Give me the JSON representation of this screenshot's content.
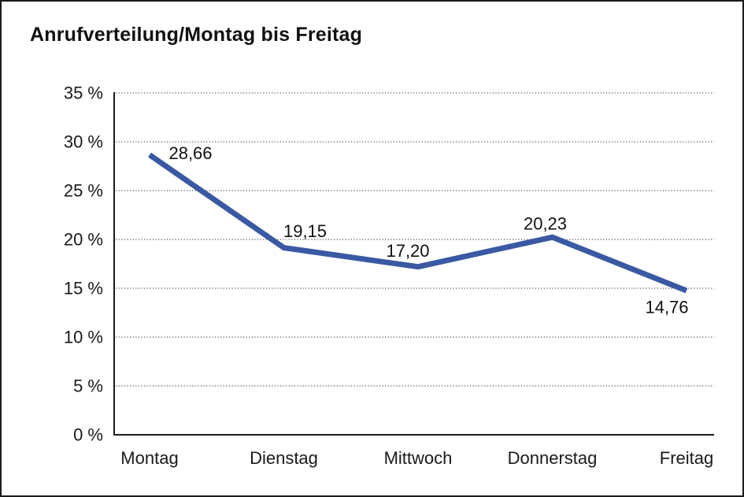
{
  "title": "Anrufverteilung/Montag bis Freitag",
  "window": {
    "background": "#ffffff",
    "border_color": "#1b1b1b"
  },
  "chart_data": {
    "type": "line",
    "title": "Anrufverteilung/Montag bis Freitag",
    "categories": [
      "Montag",
      "Dienstag",
      "Mittwoch",
      "Donnerstag",
      "Freitag"
    ],
    "values": [
      28.66,
      19.15,
      17.2,
      20.23,
      14.76
    ],
    "value_labels": [
      "28,66",
      "19,15",
      "17,20",
      "20,23",
      "14,76"
    ],
    "xlabel": "",
    "ylabel": "",
    "ylim": [
      0,
      35
    ],
    "y_ticks": {
      "values": [
        0,
        5,
        10,
        15,
        20,
        25,
        30,
        35
      ],
      "labels": [
        "0 %",
        "5 %",
        "10 %",
        "15 %",
        "20 %",
        "25 %",
        "30 %",
        "35 %"
      ]
    },
    "grid": "horizontal-dotted",
    "legend": "none",
    "line_color": "#3a59a3",
    "colors": {
      "axis": "#1a1a1a",
      "grid": "#555555",
      "tick_text": "#1a1a1a",
      "value_label_text": "#111111"
    }
  }
}
